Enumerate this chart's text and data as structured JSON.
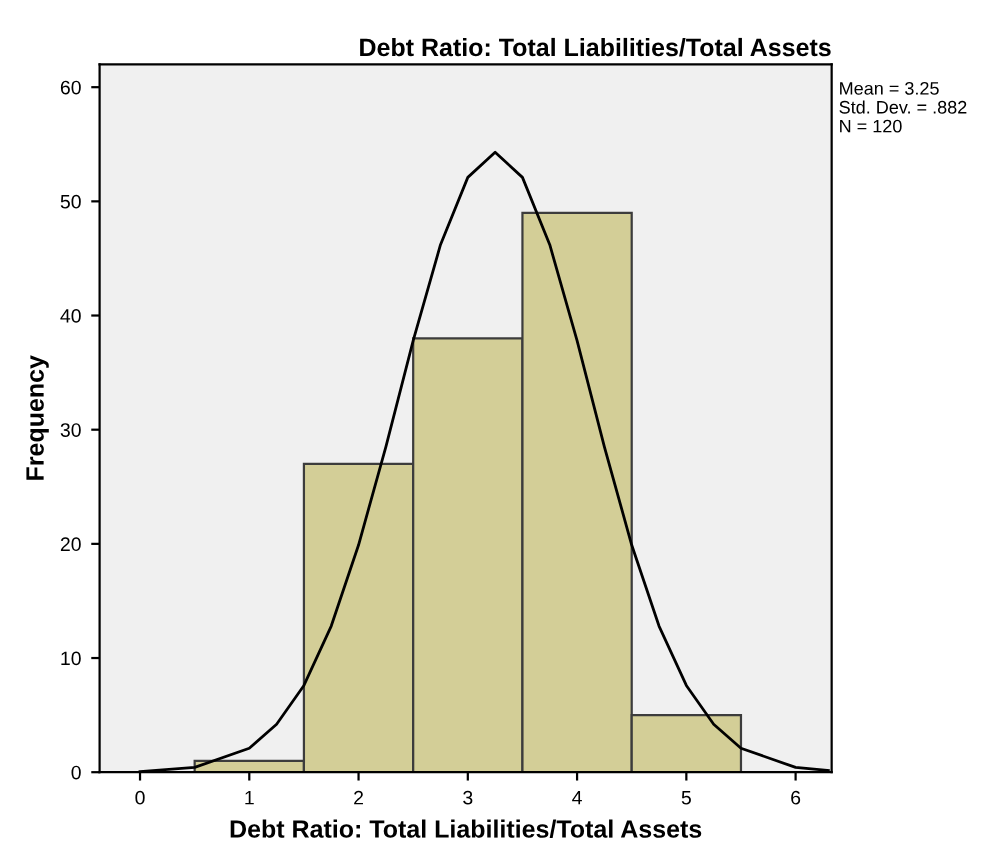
{
  "chart_data": {
    "type": "histogram",
    "title": "Debt Ratio: Total Liabilities/Total Assets",
    "xlabel": "Debt Ratio: Total Liabilities/Total Assets",
    "ylabel": "Frequency",
    "bins": [
      0.5,
      1.5,
      2.5,
      3.5,
      4.5,
      5.5
    ],
    "values": [
      1,
      27,
      38,
      49,
      5
    ],
    "color": "#d3ce97",
    "series": [
      {
        "type": "line",
        "color": "#000000",
        "x": [
          0,
          0.5,
          1,
          1.25,
          1.5,
          1.75,
          2,
          2.25,
          2.5,
          2.75,
          3,
          3.25,
          3.5,
          3.75,
          4,
          4.25,
          4.5,
          4.75,
          5,
          5.25,
          5.5,
          6,
          6.3
        ],
        "values": [
          0.06,
          0.42,
          2.1,
          4.2,
          7.6,
          12.8,
          19.9,
          28.5,
          37.8,
          46.2,
          52.1,
          54.3,
          52.1,
          46.2,
          37.8,
          28.5,
          19.9,
          12.8,
          7.6,
          4.2,
          2.1,
          0.42,
          0.14
        ]
      }
    ],
    "xlim": [
      -0.37,
      6.33
    ],
    "xticks": [
      0,
      1,
      2,
      3,
      4,
      5,
      6
    ],
    "ylim": [
      0,
      62
    ],
    "yticks": [
      0,
      10,
      20,
      30,
      40,
      50,
      60
    ],
    "annotations": [
      "Mean = 3.25",
      "Std. Dev. = .882",
      "N = 120"
    ],
    "grid": false,
    "legend": false
  }
}
